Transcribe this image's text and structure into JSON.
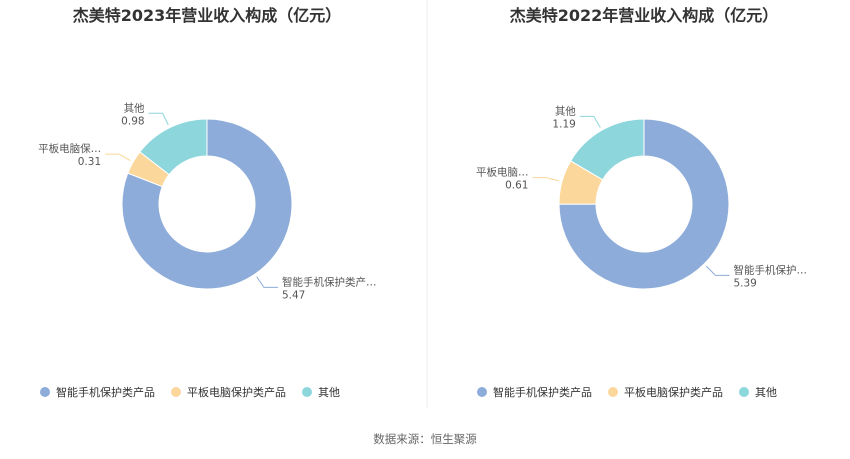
{
  "source_note": "数据来源：恒生聚源",
  "colors": {
    "智能手机保护类产品": "#8eacd9",
    "平板电脑保护类产品": "#fbd79b",
    "其他": "#8dd6dc"
  },
  "chart_data": [
    {
      "type": "pie",
      "title": "杰美特2023年营业收入构成（亿元）",
      "donut": true,
      "slices": [
        {
          "name": "智能手机保护类产品",
          "value": 5.47,
          "label": "智能手机保护类产…",
          "value_label": "5.47"
        },
        {
          "name": "平板电脑保护类产品",
          "value": 0.31,
          "label": "平板电脑保…",
          "value_label": "0.31"
        },
        {
          "name": "其他",
          "value": 0.98,
          "label": "其他",
          "value_label": "0.98"
        }
      ],
      "legend": {
        "placement": "bottom",
        "items": [
          "智能手机保护类产品",
          "平板电脑保护类产品",
          "其他"
        ]
      }
    },
    {
      "type": "pie",
      "title": "杰美特2022年营业收入构成（亿元）",
      "donut": true,
      "slices": [
        {
          "name": "智能手机保护类产品",
          "value": 5.39,
          "label": "智能手机保护…",
          "value_label": "5.39"
        },
        {
          "name": "平板电脑保护类产品",
          "value": 0.61,
          "label": "平板电脑…",
          "value_label": "0.61"
        },
        {
          "name": "其他",
          "value": 1.19,
          "label": "其他",
          "value_label": "1.19"
        }
      ],
      "legend": {
        "placement": "bottom",
        "items": [
          "智能手机保护类产品",
          "平板电脑保护类产品",
          "其他"
        ]
      }
    }
  ]
}
